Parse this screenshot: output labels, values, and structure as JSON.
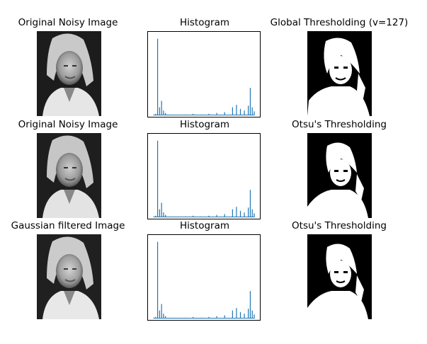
{
  "figure": {
    "rows": [
      {
        "image_title": "Original Noisy Image",
        "hist_title": "Histogram",
        "thresh_title": "Global Thresholding (v=127)"
      },
      {
        "image_title": "Original Noisy Image",
        "hist_title": "Histogram",
        "thresh_title": "Otsu's Thresholding"
      },
      {
        "image_title": "Gaussian filtered Image",
        "hist_title": "Histogram",
        "thresh_title": "Otsu's Thresholding"
      }
    ],
    "colors": {
      "bar": "#1f77b4"
    }
  },
  "chart_data": [
    {
      "type": "bar",
      "title": "Histogram",
      "x": [
        0,
        5,
        10,
        15,
        20,
        25,
        30,
        50,
        80,
        100,
        120,
        140,
        160,
        180,
        200,
        210,
        220,
        230,
        240,
        245,
        250,
        255
      ],
      "values": [
        1,
        2,
        95,
        10,
        18,
        6,
        3,
        1,
        1,
        2,
        1,
        2,
        3,
        4,
        10,
        13,
        8,
        6,
        12,
        34,
        10,
        5
      ],
      "xlim": [
        0,
        255
      ],
      "ylim": [
        0,
        100
      ]
    },
    {
      "type": "bar",
      "title": "Histogram",
      "x": [
        0,
        5,
        10,
        15,
        20,
        25,
        30,
        50,
        80,
        100,
        120,
        140,
        160,
        180,
        200,
        210,
        220,
        230,
        240,
        245,
        250,
        255
      ],
      "values": [
        1,
        2,
        95,
        10,
        18,
        6,
        3,
        1,
        1,
        2,
        1,
        2,
        3,
        4,
        10,
        13,
        8,
        6,
        12,
        34,
        10,
        5
      ],
      "xlim": [
        0,
        255
      ],
      "ylim": [
        0,
        100
      ]
    },
    {
      "type": "bar",
      "title": "Histogram",
      "x": [
        0,
        5,
        10,
        15,
        20,
        25,
        30,
        50,
        80,
        100,
        120,
        140,
        160,
        180,
        200,
        210,
        220,
        230,
        240,
        245,
        250,
        255
      ],
      "values": [
        1,
        2,
        95,
        10,
        18,
        6,
        3,
        1,
        1,
        2,
        1,
        2,
        3,
        4,
        10,
        13,
        8,
        6,
        12,
        34,
        10,
        5
      ],
      "xlim": [
        0,
        255
      ],
      "ylim": [
        0,
        100
      ]
    }
  ]
}
